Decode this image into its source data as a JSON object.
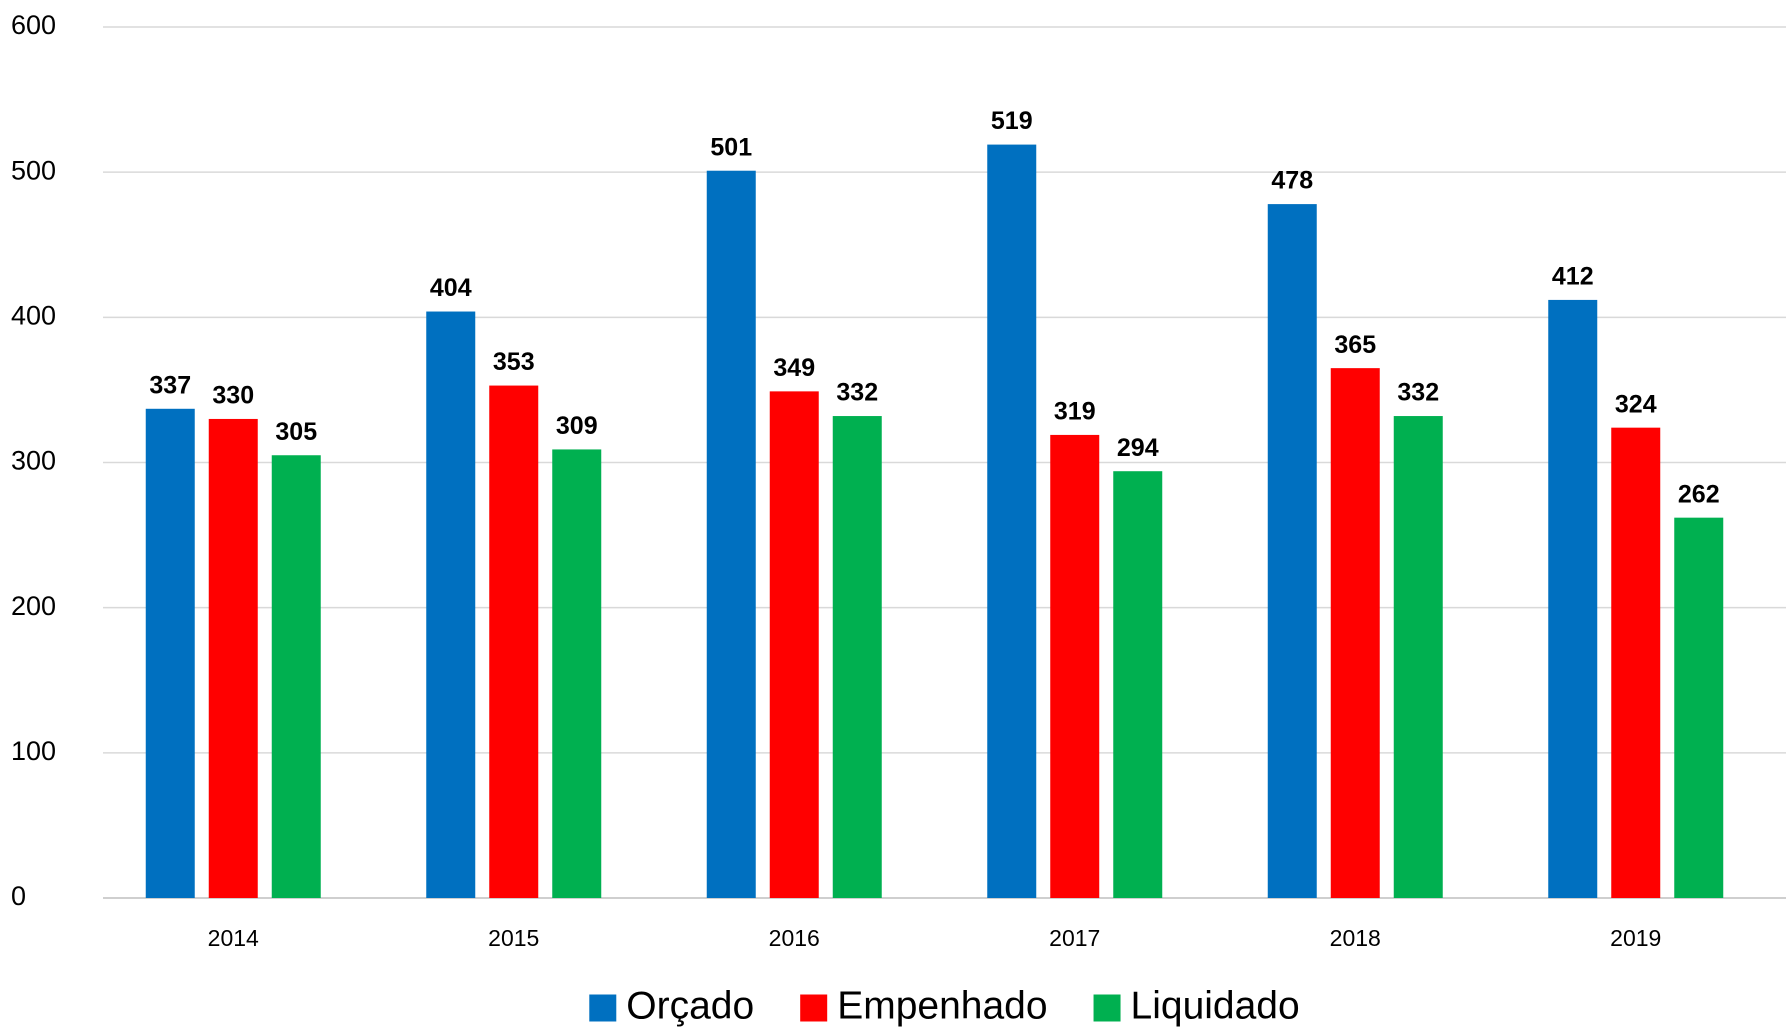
{
  "chart_data": {
    "type": "bar",
    "categories": [
      "2014",
      "2015",
      "2016",
      "2017",
      "2018",
      "2019"
    ],
    "series": [
      {
        "name": "Orçado",
        "color": "#0070c0",
        "values": [
          337,
          404,
          501,
          519,
          478,
          412
        ]
      },
      {
        "name": "Empenhado",
        "color": "#ff0000",
        "values": [
          330,
          353,
          349,
          319,
          365,
          324
        ]
      },
      {
        "name": "Liquidado",
        "color": "#00b050",
        "values": [
          305,
          309,
          332,
          294,
          332,
          262
        ]
      }
    ],
    "ylim": [
      0,
      600
    ],
    "yticks": [
      0,
      100,
      200,
      300,
      400,
      500,
      600
    ],
    "grid": true,
    "legend": "bottom"
  }
}
